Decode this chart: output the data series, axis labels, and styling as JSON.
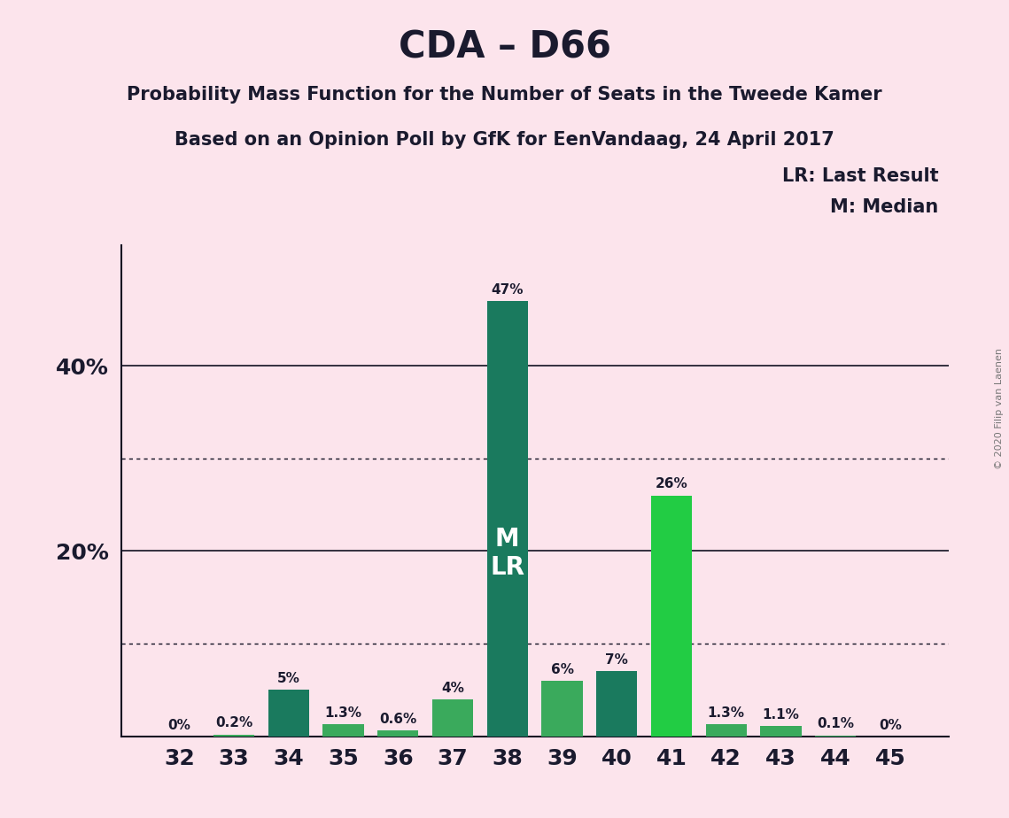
{
  "title": "CDA – D66",
  "subtitle1": "Probability Mass Function for the Number of Seats in the Tweede Kamer",
  "subtitle2": "Based on an Opinion Poll by GfK for EenVandaag, 24 April 2017",
  "copyright": "© 2020 Filip van Laenen",
  "seats": [
    32,
    33,
    34,
    35,
    36,
    37,
    38,
    39,
    40,
    41,
    42,
    43,
    44,
    45
  ],
  "values": [
    0.0,
    0.2,
    5.0,
    1.3,
    0.6,
    4.0,
    47.0,
    6.0,
    7.0,
    26.0,
    1.3,
    1.1,
    0.1,
    0.0
  ],
  "labels": [
    "0%",
    "0.2%",
    "5%",
    "1.3%",
    "0.6%",
    "4%",
    "47%",
    "6%",
    "7%",
    "26%",
    "1.3%",
    "1.1%",
    "0.1%",
    "0%"
  ],
  "bar_colors_map": {
    "32": "#3aaa5c",
    "33": "#3aaa5c",
    "34": "#1a7a5e",
    "35": "#3aaa5c",
    "36": "#3aaa5c",
    "37": "#3aaa5c",
    "38": "#1a7a5e",
    "39": "#3aaa5c",
    "40": "#1a7a5e",
    "41": "#22cc44",
    "42": "#3aaa5c",
    "43": "#3aaa5c",
    "44": "#3aaa5c",
    "45": "#3aaa5c"
  },
  "median_seat": 38,
  "last_result_seat": 38,
  "background_color": "#fce4ec",
  "ylim": [
    0,
    53
  ],
  "legend_lr": "LR: Last Result",
  "legend_m": "M: Median",
  "dotted_lines": [
    10,
    30
  ],
  "solid_lines": [
    20,
    40
  ]
}
